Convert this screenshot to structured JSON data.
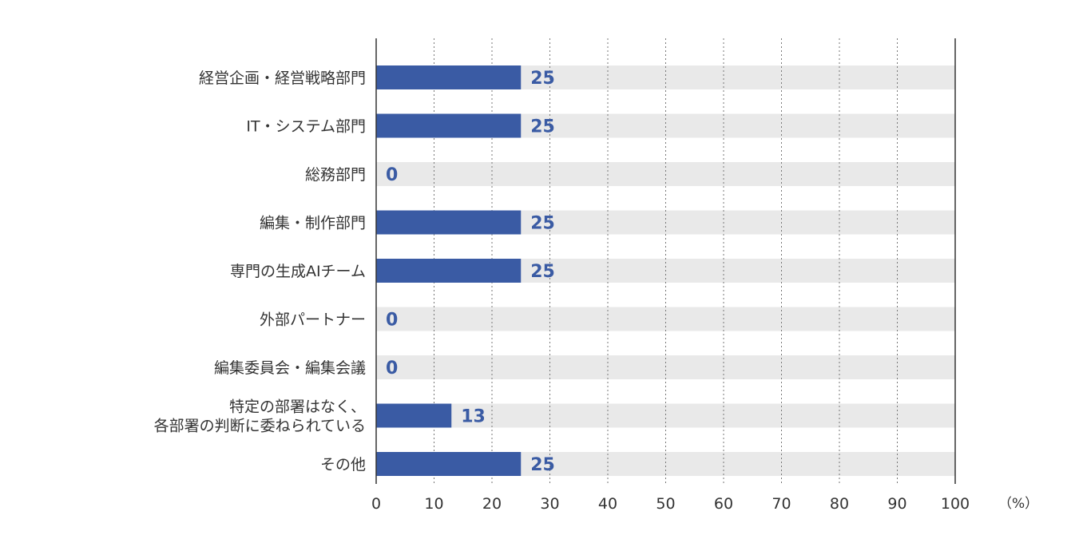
{
  "chart_data": {
    "type": "bar",
    "orientation": "horizontal",
    "categories": [
      [
        "経営企画・経営戦略部門"
      ],
      [
        "IT・システム部門"
      ],
      [
        "総務部門"
      ],
      [
        "編集・制作部門"
      ],
      [
        "専門の生成AIチーム"
      ],
      [
        "外部パートナー"
      ],
      [
        "編集委員会・編集会議"
      ],
      [
        "特定の部署はなく、",
        "各部署の判断に委ねられている"
      ],
      [
        "その他"
      ]
    ],
    "values": [
      25,
      25,
      0,
      25,
      25,
      0,
      0,
      13,
      25
    ],
    "xlim": [
      0,
      100
    ],
    "xticks": [
      0,
      10,
      20,
      30,
      40,
      50,
      60,
      70,
      80,
      90,
      100
    ],
    "unit": "（%）",
    "grid": true,
    "colors": {
      "bar": "#3a5ba4",
      "track": "#e9e9e9",
      "value_text": "#3a5ba4",
      "axis": "#333333",
      "grid": "#777777"
    }
  }
}
